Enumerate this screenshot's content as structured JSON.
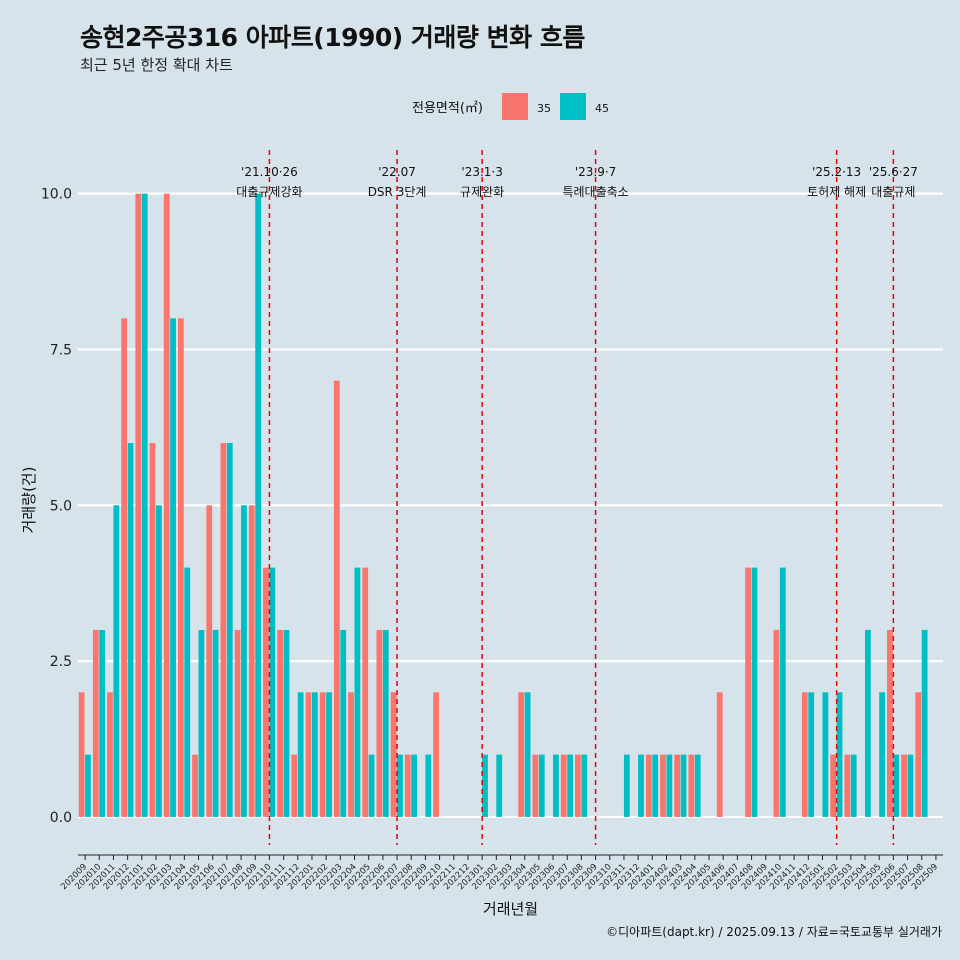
{
  "title": "송현2주공316 아파트(1990) 거래량 변화 흐름",
  "subtitle": "최근 5년 한정 확대 차트",
  "caption": "©디아파트(dapt.kr) / 2025.09.13 / 자료=국토교통부 실거래가",
  "colors": {
    "s35": "#f8766d",
    "s45": "#00bfc4",
    "background": "#d6e3ea",
    "event_line": "#e8000b"
  },
  "chart_data": {
    "type": "bar",
    "title": "송현2주공316 아파트(1990) 거래량 변화 흐름",
    "subtitle": "최근 5년 한정 확대 차트",
    "xlabel": "거래년월",
    "ylabel": "거래량(건)",
    "ylim": [
      -0.45,
      10.7
    ],
    "yticks": [
      0.0,
      2.5,
      5.0,
      7.5,
      10.0
    ],
    "ytick_labels": [
      "0.0",
      "2.5",
      "5.0",
      "7.5",
      "10.0"
    ],
    "legend": {
      "title": "전용면적(㎡)",
      "position": "top",
      "labels": [
        "35",
        "45"
      ]
    },
    "categories": [
      "202009",
      "202010",
      "202011",
      "202012",
      "202101",
      "202102",
      "202103",
      "202104",
      "202105",
      "202106",
      "202107",
      "202108",
      "202109",
      "202110",
      "202111",
      "202112",
      "202201",
      "202202",
      "202203",
      "202204",
      "202205",
      "202206",
      "202207",
      "202208",
      "202209",
      "202210",
      "202211",
      "202212",
      "202301",
      "202302",
      "202303",
      "202304",
      "202305",
      "202306",
      "202307",
      "202308",
      "202309",
      "202310",
      "202311",
      "202312",
      "202401",
      "202402",
      "202403",
      "202404",
      "202405",
      "202406",
      "202407",
      "202408",
      "202409",
      "202410",
      "202411",
      "202412",
      "202501",
      "202502",
      "202503",
      "202504",
      "202505",
      "202506",
      "202507",
      "202508",
      "202509"
    ],
    "series": [
      {
        "name": "35",
        "values": [
          2,
          3,
          2,
          8,
          10,
          6,
          10,
          8,
          1,
          5,
          6,
          3,
          5,
          4,
          3,
          1,
          2,
          2,
          7,
          2,
          4,
          3,
          2,
          1,
          0,
          2,
          0,
          0,
          0,
          0,
          0,
          2,
          1,
          0,
          1,
          1,
          0,
          0,
          0,
          0,
          1,
          1,
          1,
          1,
          0,
          2,
          0,
          4,
          0,
          3,
          0,
          2,
          0,
          1,
          1,
          0,
          0,
          3,
          1,
          2,
          0
        ]
      },
      {
        "name": "45",
        "values": [
          1,
          3,
          5,
          6,
          10,
          5,
          8,
          4,
          3,
          3,
          6,
          5,
          10,
          4,
          3,
          2,
          2,
          2,
          3,
          4,
          1,
          3,
          1,
          1,
          1,
          0,
          0,
          0,
          1,
          1,
          0,
          2,
          1,
          1,
          1,
          1,
          0,
          0,
          1,
          1,
          1,
          1,
          1,
          1,
          0,
          0,
          0,
          4,
          0,
          4,
          0,
          2,
          2,
          2,
          1,
          3,
          2,
          1,
          1,
          3,
          0
        ]
      }
    ],
    "events": [
      {
        "date": "'21.10·26",
        "label": "대출규제강화",
        "month": "202110"
      },
      {
        "date": "'22.07",
        "label": "DSR 3단계",
        "month": "202207"
      },
      {
        "date": "'23.1·3",
        "label": "규제완화",
        "month": "202301"
      },
      {
        "date": "'23.9·7",
        "label": "특례대출축소",
        "month": "202309"
      },
      {
        "date": "'25.2·13",
        "label": "토허제 해제",
        "month": "202502"
      },
      {
        "date": "'25.6·27",
        "label": "대출규제",
        "month": "202506"
      }
    ]
  }
}
